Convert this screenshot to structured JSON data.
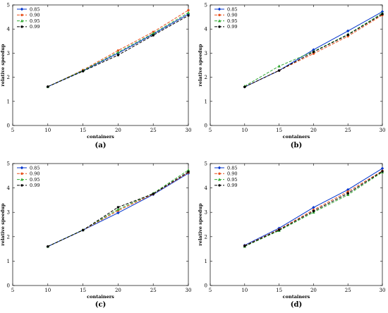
{
  "chart_data": [
    {
      "type": "line",
      "caption": "(a)",
      "xlabel": "containers",
      "ylabel": "relative speedup",
      "xlim": [
        5,
        30
      ],
      "ylim": [
        0,
        5
      ],
      "xticks": [
        5,
        10,
        15,
        20,
        25,
        30
      ],
      "yticks": [
        0,
        1,
        2,
        3,
        4,
        5
      ],
      "grid": false,
      "legend_position": "top-left",
      "x": [
        10,
        15,
        20,
        25,
        30
      ],
      "series": [
        {
          "name": "0.85",
          "color": "#0033cc",
          "dash": "solid",
          "marker": "diamond",
          "values": [
            1.61,
            2.27,
            3.0,
            3.79,
            4.62
          ]
        },
        {
          "name": "0.90",
          "color": "#e8501c",
          "dash": "dashed",
          "marker": "circle",
          "values": [
            1.61,
            2.3,
            3.11,
            3.88,
            4.78
          ]
        },
        {
          "name": "0.95",
          "color": "#33aa33",
          "dash": "dashed",
          "marker": "triangle",
          "values": [
            1.61,
            2.28,
            3.04,
            3.82,
            4.68
          ]
        },
        {
          "name": "0.99",
          "color": "#000000",
          "dash": "dashed",
          "marker": "circle",
          "values": [
            1.61,
            2.25,
            2.92,
            3.74,
            4.56
          ]
        }
      ]
    },
    {
      "type": "line",
      "caption": "(b)",
      "xlabel": "containers",
      "ylabel": "relative speedup",
      "xlim": [
        5,
        30
      ],
      "ylim": [
        0,
        5
      ],
      "xticks": [
        5,
        10,
        15,
        20,
        25,
        30
      ],
      "yticks": [
        0,
        1,
        2,
        3,
        4,
        5
      ],
      "grid": false,
      "legend_position": "top-left",
      "x": [
        10,
        15,
        20,
        25,
        30
      ],
      "series": [
        {
          "name": "0.85",
          "color": "#0033cc",
          "dash": "solid",
          "marker": "diamond",
          "values": [
            1.6,
            2.28,
            3.14,
            3.92,
            4.72
          ]
        },
        {
          "name": "0.90",
          "color": "#e8501c",
          "dash": "dashed",
          "marker": "circle",
          "values": [
            1.6,
            2.28,
            2.98,
            3.7,
            4.58
          ]
        },
        {
          "name": "0.95",
          "color": "#33aa33",
          "dash": "dashed",
          "marker": "triangle",
          "values": [
            1.63,
            2.46,
            3.07,
            3.78,
            4.66
          ]
        },
        {
          "name": "0.99",
          "color": "#000000",
          "dash": "dashed",
          "marker": "circle",
          "values": [
            1.6,
            2.28,
            3.05,
            3.76,
            4.62
          ]
        }
      ]
    },
    {
      "type": "line",
      "caption": "(c)",
      "xlabel": "containers",
      "ylabel": "relative speedup",
      "xlim": [
        5,
        30
      ],
      "ylim": [
        0,
        5
      ],
      "xticks": [
        5,
        10,
        15,
        20,
        25,
        30
      ],
      "yticks": [
        0,
        1,
        2,
        3,
        4,
        5
      ],
      "grid": false,
      "legend_position": "top-left",
      "x": [
        10,
        15,
        20,
        25,
        30
      ],
      "series": [
        {
          "name": "0.85",
          "color": "#0033cc",
          "dash": "solid",
          "marker": "diamond",
          "values": [
            1.6,
            2.27,
            2.98,
            3.73,
            4.6
          ]
        },
        {
          "name": "0.90",
          "color": "#e8501c",
          "dash": "dashed",
          "marker": "circle",
          "values": [
            1.6,
            2.27,
            3.07,
            3.75,
            4.63
          ]
        },
        {
          "name": "0.95",
          "color": "#33aa33",
          "dash": "dashed",
          "marker": "triangle",
          "values": [
            1.6,
            2.28,
            3.12,
            3.78,
            4.73
          ]
        },
        {
          "name": "0.99",
          "color": "#000000",
          "dash": "dashed",
          "marker": "circle",
          "values": [
            1.6,
            2.27,
            3.21,
            3.76,
            4.66
          ]
        }
      ]
    },
    {
      "type": "line",
      "caption": "(d)",
      "xlabel": "containers",
      "ylabel": "relative speedup",
      "xlim": [
        5,
        30
      ],
      "ylim": [
        0,
        5
      ],
      "xticks": [
        5,
        10,
        15,
        20,
        25,
        30
      ],
      "yticks": [
        0,
        1,
        2,
        3,
        4,
        5
      ],
      "grid": false,
      "legend_position": "top-left",
      "x": [
        10,
        15,
        20,
        25,
        30
      ],
      "series": [
        {
          "name": "0.85",
          "color": "#0033cc",
          "dash": "solid",
          "marker": "diamond",
          "values": [
            1.65,
            2.35,
            3.2,
            3.93,
            4.8
          ]
        },
        {
          "name": "0.90",
          "color": "#e8501c",
          "dash": "dashed",
          "marker": "circle",
          "values": [
            1.63,
            2.3,
            3.1,
            3.85,
            4.7
          ]
        },
        {
          "name": "0.95",
          "color": "#33aa33",
          "dash": "dashed",
          "marker": "triangle",
          "values": [
            1.6,
            2.25,
            3.0,
            3.72,
            4.65
          ]
        },
        {
          "name": "0.99",
          "color": "#000000",
          "dash": "dashed",
          "marker": "circle",
          "values": [
            1.62,
            2.28,
            3.05,
            3.78,
            4.68
          ]
        }
      ]
    }
  ]
}
